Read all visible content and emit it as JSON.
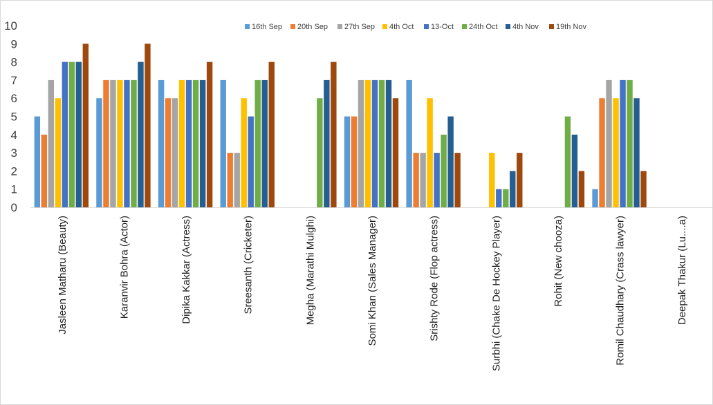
{
  "chart_data": {
    "type": "bar",
    "title": "",
    "xlabel": "",
    "ylabel": "",
    "ylim": [
      0,
      10
    ],
    "yticks": [
      0,
      1,
      2,
      3,
      4,
      5,
      6,
      7,
      8,
      9,
      10
    ],
    "grid": false,
    "legend_position": "top-right",
    "categories": [
      "Jasleen Matharu (Beauty)",
      "Karanvir Bohra (Actor)",
      "Dipika Kakkar (Actress)",
      "Sreesanth (Cricketer)",
      "Megha (Marathi Mulghi)",
      "Somi Khan (Sales Manager)",
      "Srishty Rode (Flop actress)",
      "Surbhi (Chake De Hockey Player)",
      "Rohit (New chooza)",
      "Romil Chaudhary (Crass lawyer)",
      "Deepak Thakur (Lu....a)"
    ],
    "series": [
      {
        "name": "16th Sep",
        "color": "#5b9bd5",
        "values": [
          5,
          6,
          7,
          7,
          null,
          5,
          7,
          null,
          null,
          1,
          null
        ]
      },
      {
        "name": "20th Sep",
        "color": "#ed7d31",
        "values": [
          4,
          7,
          6,
          3,
          null,
          5,
          3,
          null,
          null,
          6,
          null
        ]
      },
      {
        "name": "27th Sep",
        "color": "#a5a5a5",
        "values": [
          7,
          7,
          6,
          3,
          null,
          7,
          3,
          null,
          null,
          7,
          null
        ]
      },
      {
        "name": "4th Oct",
        "color": "#ffc000",
        "values": [
          6,
          7,
          7,
          6,
          null,
          7,
          6,
          3,
          null,
          6,
          null
        ]
      },
      {
        "name": "13-Oct",
        "color": "#4472c4",
        "values": [
          8,
          7,
          7,
          5,
          null,
          7,
          3,
          1,
          null,
          7,
          null
        ]
      },
      {
        "name": "24th Oct",
        "color": "#70ad47",
        "values": [
          8,
          7,
          7,
          7,
          6,
          7,
          4,
          1,
          5,
          7,
          null
        ]
      },
      {
        "name": "4th Nov",
        "color": "#255e91",
        "values": [
          8,
          8,
          7,
          7,
          7,
          7,
          5,
          2,
          4,
          6,
          null
        ]
      },
      {
        "name": "19th Nov",
        "color": "#9e480e",
        "values": [
          9,
          9,
          8,
          8,
          8,
          6,
          3,
          3,
          2,
          2,
          null
        ]
      }
    ]
  }
}
